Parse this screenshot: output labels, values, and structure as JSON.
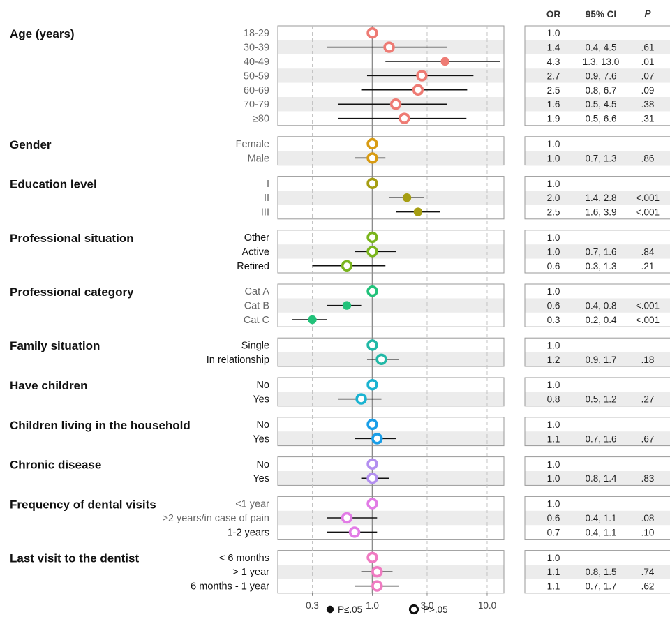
{
  "chart_data": {
    "type": "forest",
    "x_scale": "log",
    "xlim": [
      0.15,
      14
    ],
    "xticks": [
      {
        "v": 0.3,
        "label": "0.3"
      },
      {
        "v": 1,
        "label": "1.0"
      },
      {
        "v": 3,
        "label": "3.0"
      },
      {
        "v": 10,
        "label": "10.0"
      }
    ],
    "xlabel": "OR",
    "reference_line": 1,
    "columns": {
      "or": "OR",
      "ci": "95% CI",
      "p": "P"
    },
    "legend": [
      {
        "marker": "filled",
        "label": "P≤.05"
      },
      {
        "marker": "open",
        "label": "P>.05"
      }
    ],
    "groups": [
      {
        "name": "Age (years)",
        "color": "#ee7b74",
        "rows": [
          {
            "label": "18-29",
            "or": 1.0,
            "lo": null,
            "hi": null,
            "or_text": "1.0",
            "ci_text": "",
            "p_text": "",
            "sig": false
          },
          {
            "label": "30-39",
            "or": 1.4,
            "lo": 0.4,
            "hi": 4.5,
            "or_text": "1.4",
            "ci_text": "0.4, 4.5",
            "p_text": ".61",
            "sig": false
          },
          {
            "label": "40-49",
            "or": 4.3,
            "lo": 1.3,
            "hi": 13.0,
            "or_text": "4.3",
            "ci_text": "1.3, 13.0",
            "p_text": ".01",
            "sig": true
          },
          {
            "label": "50-59",
            "or": 2.7,
            "lo": 0.9,
            "hi": 7.6,
            "or_text": "2.7",
            "ci_text": "0.9, 7.6",
            "p_text": ".07",
            "sig": false
          },
          {
            "label": "60-69",
            "or": 2.5,
            "lo": 0.8,
            "hi": 6.7,
            "or_text": "2.5",
            "ci_text": "0.8, 6.7",
            "p_text": ".09",
            "sig": false
          },
          {
            "label": "70-79",
            "or": 1.6,
            "lo": 0.5,
            "hi": 4.5,
            "or_text": "1.6",
            "ci_text": "0.5, 4.5",
            "p_text": ".38",
            "sig": false
          },
          {
            "label": "≥80",
            "or": 1.9,
            "lo": 0.5,
            "hi": 6.6,
            "or_text": "1.9",
            "ci_text": "0.5, 6.6",
            "p_text": ".31",
            "sig": false
          }
        ]
      },
      {
        "name": "Gender",
        "color": "#d89b12",
        "rows": [
          {
            "label": "Female",
            "or": 1.0,
            "lo": null,
            "hi": null,
            "or_text": "1.0",
            "ci_text": "",
            "p_text": "",
            "sig": false
          },
          {
            "label": "Male",
            "or": 1.0,
            "lo": 0.7,
            "hi": 1.3,
            "or_text": "1.0",
            "ci_text": "0.7, 1.3",
            "p_text": ".86",
            "sig": false
          }
        ]
      },
      {
        "name": "Education level",
        "color": "#a69e12",
        "rows": [
          {
            "label": "I",
            "or": 1.0,
            "lo": null,
            "hi": null,
            "or_text": "1.0",
            "ci_text": "",
            "p_text": "",
            "sig": false
          },
          {
            "label": "II",
            "or": 2.0,
            "lo": 1.4,
            "hi": 2.8,
            "or_text": "2.0",
            "ci_text": "1.4, 2.8",
            "p_text": "<.001",
            "sig": true
          },
          {
            "label": "III",
            "or": 2.5,
            "lo": 1.6,
            "hi": 3.9,
            "or_text": "2.5",
            "ci_text": "1.6, 3.9",
            "p_text": "<.001",
            "sig": true
          }
        ]
      },
      {
        "name": "Professional situation",
        "color": "#7ab51d",
        "rows": [
          {
            "label": "Other",
            "or": 1.0,
            "lo": null,
            "hi": null,
            "or_text": "1.0",
            "ci_text": "",
            "p_text": "",
            "sig": false
          },
          {
            "label": "Active",
            "or": 1.0,
            "lo": 0.7,
            "hi": 1.6,
            "or_text": "1.0",
            "ci_text": "0.7, 1.6",
            "p_text": ".84",
            "sig": false
          },
          {
            "label": "Retired",
            "or": 0.6,
            "lo": 0.3,
            "hi": 1.3,
            "or_text": "0.6",
            "ci_text": "0.3, 1.3",
            "p_text": ".21",
            "sig": false
          }
        ]
      },
      {
        "name": "Professional category",
        "color": "#22c27a",
        "rows": [
          {
            "label": "Cat A",
            "or": 1.0,
            "lo": null,
            "hi": null,
            "or_text": "1.0",
            "ci_text": "",
            "p_text": "",
            "sig": false
          },
          {
            "label": "Cat B",
            "or": 0.6,
            "lo": 0.4,
            "hi": 0.8,
            "or_text": "0.6",
            "ci_text": "0.4, 0.8",
            "p_text": "<.001",
            "sig": true
          },
          {
            "label": "Cat C",
            "or": 0.3,
            "lo": 0.2,
            "hi": 0.4,
            "or_text": "0.3",
            "ci_text": "0.2, 0.4",
            "p_text": "<.001",
            "sig": true
          }
        ]
      },
      {
        "name": "Family situation",
        "color": "#21b8a6",
        "rows": [
          {
            "label": "Single",
            "or": 1.0,
            "lo": null,
            "hi": null,
            "or_text": "1.0",
            "ci_text": "",
            "p_text": "",
            "sig": false
          },
          {
            "label": "In relationship",
            "or": 1.2,
            "lo": 0.9,
            "hi": 1.7,
            "or_text": "1.2",
            "ci_text": "0.9, 1.7",
            "p_text": ".18",
            "sig": false
          }
        ]
      },
      {
        "name": "Have children",
        "color": "#1ab3d1",
        "rows": [
          {
            "label": "No",
            "or": 1.0,
            "lo": null,
            "hi": null,
            "or_text": "1.0",
            "ci_text": "",
            "p_text": "",
            "sig": false
          },
          {
            "label": "Yes",
            "or": 0.8,
            "lo": 0.5,
            "hi": 1.2,
            "or_text": "0.8",
            "ci_text": "0.5, 1.2",
            "p_text": ".27",
            "sig": false
          }
        ]
      },
      {
        "name": "Children living in the household",
        "color": "#199ee8",
        "rows": [
          {
            "label": "No",
            "or": 1.0,
            "lo": null,
            "hi": null,
            "or_text": "1.0",
            "ci_text": "",
            "p_text": "",
            "sig": false
          },
          {
            "label": "Yes",
            "or": 1.1,
            "lo": 0.7,
            "hi": 1.6,
            "or_text": "1.1",
            "ci_text": "0.7, 1.6",
            "p_text": ".67",
            "sig": false
          }
        ]
      },
      {
        "name": "Chronic disease",
        "color": "#b38ff0",
        "rows": [
          {
            "label": "No",
            "or": 1.0,
            "lo": null,
            "hi": null,
            "or_text": "1.0",
            "ci_text": "",
            "p_text": "",
            "sig": false
          },
          {
            "label": "Yes",
            "or": 1.0,
            "lo": 0.8,
            "hi": 1.4,
            "or_text": "1.0",
            "ci_text": "0.8, 1.4",
            "p_text": ".83",
            "sig": false
          }
        ]
      },
      {
        "name": "Frequency of dental visits",
        "color": "#e27be6",
        "rows": [
          {
            "label": "<1 year",
            "or": 1.0,
            "lo": null,
            "hi": null,
            "or_text": "1.0",
            "ci_text": "",
            "p_text": "",
            "sig": false
          },
          {
            "label": ">2 years/in case of pain",
            "or": 0.6,
            "lo": 0.4,
            "hi": 1.1,
            "or_text": "0.6",
            "ci_text": "0.4, 1.1",
            "p_text": ".08",
            "sig": false
          },
          {
            "label": "1-2 years",
            "or": 0.7,
            "lo": 0.4,
            "hi": 1.1,
            "or_text": "0.7",
            "ci_text": "0.4, 1.1",
            "p_text": ".10",
            "sig": false
          }
        ]
      },
      {
        "name": "Last visit to the dentist",
        "color": "#f07bc2",
        "rows": [
          {
            "label": "< 6 months",
            "or": 1.0,
            "lo": null,
            "hi": null,
            "or_text": "1.0",
            "ci_text": "",
            "p_text": "",
            "sig": false
          },
          {
            "label": "> 1 year",
            "or": 1.1,
            "lo": 0.8,
            "hi": 1.5,
            "or_text": "1.1",
            "ci_text": "0.8, 1.5",
            "p_text": ".74",
            "sig": false
          },
          {
            "label": "6 months - 1 year",
            "or": 1.1,
            "lo": 0.7,
            "hi": 1.7,
            "or_text": "1.1",
            "ci_text": "0.7, 1.7",
            "p_text": ".62",
            "sig": false
          }
        ]
      }
    ]
  }
}
